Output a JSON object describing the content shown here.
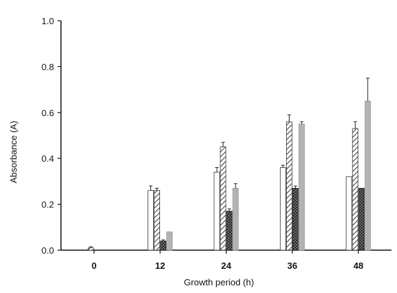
{
  "chart_data": {
    "type": "bar",
    "xlabel": "Growth period (h)",
    "ylabel": "Absorbance (A)",
    "ylim": [
      0,
      1.0
    ],
    "yticks": [
      "0.0",
      "0.2",
      "0.4",
      "0.6",
      "0.8",
      "1.0"
    ],
    "categories": [
      "0",
      "12",
      "24",
      "36",
      "48"
    ],
    "series": [
      {
        "fill": "white",
        "values": [
          0.0,
          0.26,
          0.34,
          0.36,
          0.32
        ],
        "errors": [
          0.0,
          0.02,
          0.02,
          0.01,
          0.0
        ]
      },
      {
        "fill": "hatch",
        "values": [
          0.01,
          0.26,
          0.45,
          0.56,
          0.53
        ],
        "errors": [
          0.005,
          0.01,
          0.02,
          0.03,
          0.03
        ]
      },
      {
        "fill": "crosshatch",
        "values": [
          0.0,
          0.04,
          0.17,
          0.27,
          0.27
        ],
        "errors": [
          0.0,
          0.005,
          0.01,
          0.01,
          0.0
        ]
      },
      {
        "fill": "gray",
        "values": [
          0.0,
          0.08,
          0.27,
          0.55,
          0.65
        ],
        "errors": [
          0.0,
          0.0,
          0.02,
          0.01,
          0.1
        ]
      }
    ],
    "legend": "none",
    "grid": false
  }
}
